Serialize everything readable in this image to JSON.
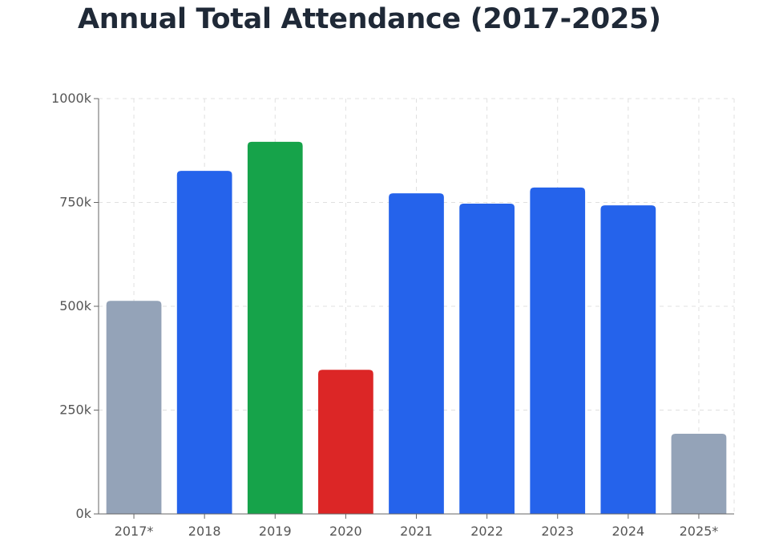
{
  "chart_data": {
    "type": "bar",
    "title": "Annual Total Attendance (2017-2025)",
    "xlabel": "",
    "ylabel": "",
    "categories": [
      "2017*",
      "2018",
      "2019",
      "2020",
      "2021",
      "2022",
      "2023",
      "2024",
      "2025*"
    ],
    "values": [
      513000,
      826000,
      896000,
      347000,
      772000,
      747000,
      786000,
      743000,
      193000
    ],
    "colors": [
      "#94a3b8",
      "#2563eb",
      "#16a34a",
      "#dc2626",
      "#2563eb",
      "#2563eb",
      "#2563eb",
      "#2563eb",
      "#94a3b8"
    ],
    "ylim": [
      0,
      1000000
    ],
    "yticks": [
      0,
      250000,
      500000,
      750000,
      1000000
    ],
    "ytick_labels": [
      "0k",
      "250k",
      "500k",
      "750k",
      "1000k"
    ],
    "grid": true,
    "legend": "none"
  }
}
